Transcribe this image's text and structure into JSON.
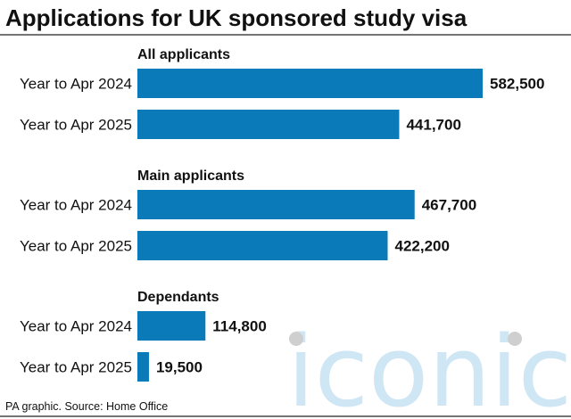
{
  "title": "Applications for UK sponsored study visa",
  "source": "PA graphic. Source: Home Office",
  "watermark": "iconic",
  "colors": {
    "bar": "#0a7ab8",
    "rule": "#222222",
    "watermark": "#cfe6f5"
  },
  "chart_data": {
    "type": "bar",
    "orientation": "horizontal",
    "title": "Applications for UK sponsored study visa",
    "xlabel": "",
    "ylabel": "",
    "xlim": [
      0,
      582500
    ],
    "grid": false,
    "groups": [
      {
        "name": "All applicants",
        "categories": [
          "Year to Apr 2024",
          "Year to Apr 2025"
        ],
        "values": [
          582500,
          441700
        ],
        "labels": [
          "582,500",
          "441,700"
        ]
      },
      {
        "name": "Main applicants",
        "categories": [
          "Year to Apr 2024",
          "Year to Apr 2025"
        ],
        "values": [
          467700,
          422200
        ],
        "labels": [
          "467,700",
          "422,200"
        ]
      },
      {
        "name": "Dependants",
        "categories": [
          "Year to Apr 2024",
          "Year to Apr 2025"
        ],
        "values": [
          114800,
          19500
        ],
        "labels": [
          "114,800",
          "19,500"
        ]
      }
    ]
  }
}
